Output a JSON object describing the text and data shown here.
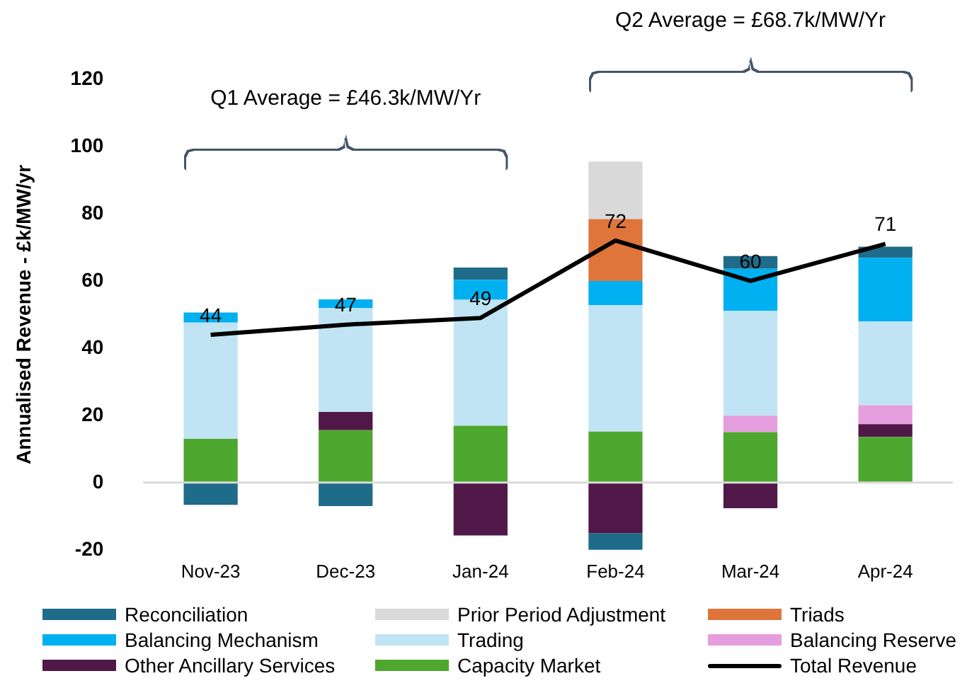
{
  "chart_data": {
    "type": "bar",
    "stacked": true,
    "ylabel": "Annualised Revenue - £k/MW/yr",
    "categories": [
      "Nov-23",
      "Dec-23",
      "Jan-24",
      "Feb-24",
      "Mar-24",
      "Apr-24"
    ],
    "ylim": [
      -20,
      120
    ],
    "yticks": [
      -20,
      0,
      20,
      40,
      60,
      80,
      100,
      120
    ],
    "grid": false,
    "legend": "bottom",
    "marker": "none",
    "series": [
      {
        "name": "Capacity Market",
        "color": "#4ea72e",
        "values": [
          13,
          15.6,
          16.9,
          15.2,
          15,
          13.6
        ]
      },
      {
        "name": "Other Ancillary Services",
        "color": "#4f1848",
        "values": [
          null,
          5.4,
          -15.7,
          -15.1,
          -7.6,
          3.8
        ]
      },
      {
        "name": "Balancing Reserve",
        "color": "#e59edd",
        "values": [
          null,
          null,
          null,
          null,
          4.9,
          5.6
        ]
      },
      {
        "name": "Trading",
        "color": "#c0e4f4",
        "values": [
          34.6,
          31,
          37.5,
          37.6,
          31.2,
          25
        ]
      },
      {
        "name": "Balancing Mechanism",
        "color": "#00b0f0",
        "values": [
          3,
          2.5,
          5.9,
          7.2,
          12.5,
          18.9
        ]
      },
      {
        "name": "Triads",
        "color": "#e0753c",
        "values": [
          null,
          null,
          null,
          18.4,
          null,
          null
        ]
      },
      {
        "name": "Prior Period Adjustment",
        "color": "#d9d9d9",
        "values": [
          null,
          null,
          null,
          17.1,
          null,
          null
        ]
      },
      {
        "name": "Reconciliation",
        "color": "#1f6b8a",
        "values": [
          -6.6,
          -7,
          3.7,
          -5.5,
          3.8,
          3.3
        ]
      },
      {
        "name": "Total Revenue",
        "type": "line",
        "color": "#000000",
        "values": [
          44,
          47,
          49,
          72,
          60,
          71
        ],
        "value_labels": [
          "44",
          "47",
          "49",
          "72",
          "60",
          "71"
        ]
      }
    ],
    "ref_lines": [
      {
        "axis": "y",
        "value": 0,
        "color": "#d9d9d9"
      }
    ],
    "annotations": [
      "Q1 Average = £46.3k/MW/Yr",
      "Q2 Average = £68.7k/MW/Yr"
    ]
  }
}
